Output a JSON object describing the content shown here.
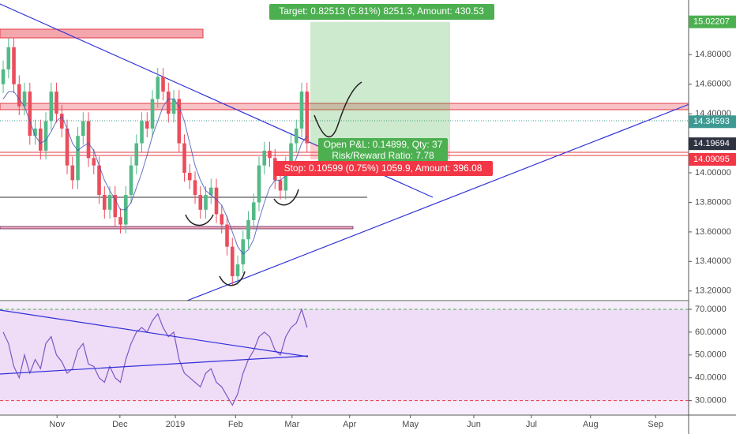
{
  "chart_data": {
    "type": "candlestick",
    "open": [
      14.6,
      14.7,
      14.85,
      14.6,
      14.45,
      14.55,
      14.25,
      14.3,
      14.15,
      14.35,
      14.55,
      14.4,
      14.3,
      14.05,
      13.95,
      14.25,
      14.35,
      14.1,
      14.05,
      13.85,
      13.75,
      13.85,
      13.7,
      13.65,
      13.85,
      14.05,
      14.2,
      14.35,
      14.3,
      14.5,
      14.65,
      14.55,
      14.4,
      14.5,
      14.2,
      14.0,
      13.95,
      13.85,
      13.75,
      13.85,
      13.9,
      13.72,
      13.65,
      13.5,
      13.3,
      13.38,
      13.55,
      13.68,
      13.8,
      14.05,
      14.15,
      14.1,
      13.95,
      13.88,
      14.05,
      14.2,
      14.3,
      14.55
    ],
    "high": [
      14.76,
      14.91,
      14.91,
      14.66,
      14.61,
      14.61,
      14.36,
      14.36,
      14.41,
      14.61,
      14.61,
      14.46,
      14.36,
      14.11,
      14.31,
      14.41,
      14.41,
      14.16,
      14.11,
      13.91,
      13.91,
      13.91,
      13.76,
      13.91,
      14.11,
      14.26,
      14.41,
      14.41,
      14.56,
      14.71,
      14.71,
      14.61,
      14.56,
      14.56,
      14.26,
      14.06,
      14.01,
      13.91,
      13.91,
      13.96,
      13.96,
      13.78,
      13.71,
      13.56,
      13.44,
      13.61,
      13.74,
      13.86,
      14.11,
      14.21,
      14.21,
      14.16,
      14.01,
      14.11,
      14.26,
      14.36,
      14.61,
      14.61
    ],
    "low": [
      14.54,
      14.64,
      14.54,
      14.39,
      14.39,
      14.19,
      14.19,
      14.09,
      14.09,
      14.29,
      14.34,
      14.24,
      13.99,
      13.89,
      13.89,
      14.19,
      14.04,
      13.99,
      13.79,
      13.69,
      13.69,
      13.64,
      13.59,
      13.59,
      13.79,
      13.99,
      14.14,
      14.24,
      14.24,
      14.44,
      14.49,
      14.34,
      14.34,
      14.14,
      13.94,
      13.89,
      13.79,
      13.69,
      13.69,
      13.79,
      13.66,
      13.59,
      13.44,
      13.24,
      13.24,
      13.32,
      13.49,
      13.62,
      13.74,
      13.99,
      14.04,
      13.89,
      13.82,
      13.82,
      13.99,
      14.14,
      14.24,
      14.14
    ],
    "close": [
      14.7,
      14.85,
      14.6,
      14.45,
      14.55,
      14.25,
      14.3,
      14.15,
      14.35,
      14.55,
      14.4,
      14.3,
      14.05,
      13.95,
      14.25,
      14.35,
      14.1,
      14.05,
      13.85,
      13.75,
      13.85,
      13.7,
      13.65,
      13.85,
      14.05,
      14.2,
      14.35,
      14.3,
      14.5,
      14.65,
      14.55,
      14.4,
      14.5,
      14.2,
      14.0,
      13.95,
      13.85,
      13.75,
      13.85,
      13.9,
      13.72,
      13.65,
      13.5,
      13.3,
      13.38,
      13.55,
      13.68,
      13.8,
      14.05,
      14.15,
      14.1,
      13.95,
      13.88,
      14.05,
      14.2,
      14.3,
      14.55,
      14.2
    ],
    "ma_values": [
      14.5,
      14.55,
      14.55,
      14.5,
      14.45,
      14.35,
      14.25,
      14.2,
      14.22,
      14.28,
      14.35,
      14.38,
      14.3,
      14.2,
      14.15,
      14.18,
      14.2,
      14.15,
      14.05,
      13.95,
      13.88,
      13.82,
      13.75,
      13.75,
      13.8,
      13.9,
      14.0,
      14.12,
      14.25,
      14.35,
      14.45,
      14.5,
      14.5,
      14.45,
      14.35,
      14.2,
      14.05,
      13.95,
      13.88,
      13.85,
      13.82,
      13.78,
      13.7,
      13.6,
      13.5,
      13.45,
      13.48,
      13.55,
      13.68,
      13.8,
      13.9,
      13.95,
      13.95,
      13.98,
      14.02,
      14.1,
      14.2,
      14.25
    ],
    "up_color": "#53b987",
    "down_color": "#eb4d5c",
    "ma_color": "#3f51b5",
    "xlim": [
      -0.6,
      128.6
    ],
    "xticks": [
      {
        "value": 10.1,
        "label": "Nov"
      },
      {
        "value": 21.9,
        "label": "Dec"
      },
      {
        "value": 32.3,
        "label": "2019"
      },
      {
        "value": 43.6,
        "label": "Feb"
      },
      {
        "value": 54.2,
        "label": "Mar"
      },
      {
        "value": 65.0,
        "label": "Apr"
      },
      {
        "value": 76.4,
        "label": "May"
      },
      {
        "value": 88.3,
        "label": "Jun"
      },
      {
        "value": 99.1,
        "label": "Jul"
      },
      {
        "value": 110.2,
        "label": "Aug"
      },
      {
        "value": 122.4,
        "label": "Sep"
      }
    ],
    "ylim": [
      13.14,
      15.17
    ],
    "yticks": [
      {
        "value": 13.2,
        "label": "13.20000"
      },
      {
        "value": 13.4,
        "label": "13.40000"
      },
      {
        "value": 13.6,
        "label": "13.60000"
      },
      {
        "value": 13.8,
        "label": "13.80000"
      },
      {
        "value": 14.0,
        "label": "14.00000"
      },
      {
        "value": 14.4,
        "label": "14.40000"
      },
      {
        "value": 14.6,
        "label": "14.60000"
      },
      {
        "value": 14.8,
        "label": "14.80000"
      }
    ],
    "price_labels": [
      {
        "value": 15.02207,
        "color": "#4caf50"
      },
      {
        "value": 14.34593,
        "color": "#3d9a92"
      },
      {
        "value": 14.19694,
        "color": "#2f3241"
      },
      {
        "value": 14.09095,
        "color": "#f23645"
      }
    ],
    "position": {
      "target_label": "Target: 0.82513 (5.81%) 8251.3, Amount: 430.53",
      "pnl_label": "Open P&L: 0.14899, Qty: 37",
      "ratio_label": "Risk/Reward Ratio: 7.78",
      "stop_label": "Stop: 0.10599 (0.75%) 1059.9, Amount: 396.08"
    },
    "rsi": {
      "values": [
        60,
        55,
        45,
        40,
        50,
        42,
        48,
        44,
        55,
        58,
        50,
        47,
        42,
        44,
        52,
        55,
        46,
        45,
        40,
        38,
        45,
        40,
        38,
        48,
        55,
        60,
        62,
        60,
        65,
        68,
        62,
        58,
        60,
        48,
        42,
        40,
        38,
        36,
        42,
        44,
        38,
        36,
        32,
        28,
        33,
        42,
        48,
        52,
        58,
        60,
        58,
        52,
        50,
        58,
        62,
        64,
        70,
        62
      ],
      "color": "#7e57c2",
      "ylim": [
        24,
        73.1
      ],
      "yticks": [
        {
          "value": 30,
          "label": "30.0000"
        },
        {
          "value": 40,
          "label": "40.0000"
        },
        {
          "value": 50,
          "label": "50.0000"
        },
        {
          "value": 60,
          "label": "60.0000"
        },
        {
          "value": 70,
          "label": "70.0000"
        }
      ]
    }
  }
}
